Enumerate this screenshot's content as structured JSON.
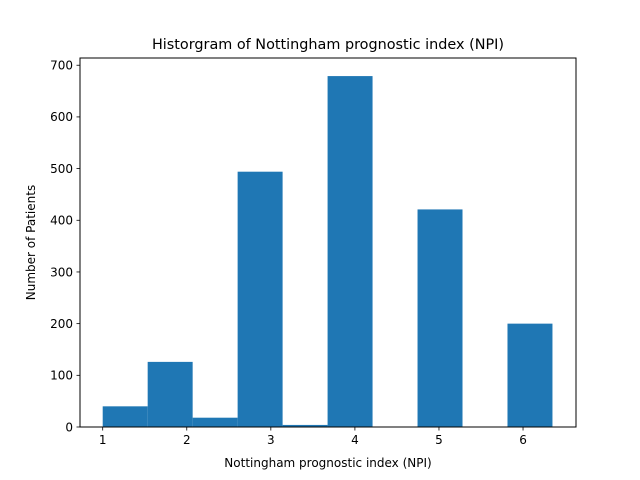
{
  "chart_data": {
    "type": "bar",
    "title": "Historgram of Nottingham prognostic index (NPI)",
    "xlabel": "Nottingham prognostic index (NPI)",
    "ylabel": "Number of Patients",
    "xlim": [
      0.73,
      6.63
    ],
    "ylim": [
      0,
      714
    ],
    "x_ticks": [
      1,
      2,
      3,
      4,
      5,
      6
    ],
    "y_ticks": [
      0,
      100,
      200,
      300,
      400,
      500,
      600,
      700
    ],
    "bin_edges": [
      1.0,
      1.535,
      2.07,
      2.605,
      3.14,
      3.675,
      4.21,
      4.745,
      5.28,
      5.815,
      6.35
    ],
    "values": [
      40,
      126,
      18,
      494,
      4,
      679,
      0,
      421,
      0,
      200
    ],
    "color": "#1f77b4",
    "grid": false,
    "legend": "none"
  }
}
